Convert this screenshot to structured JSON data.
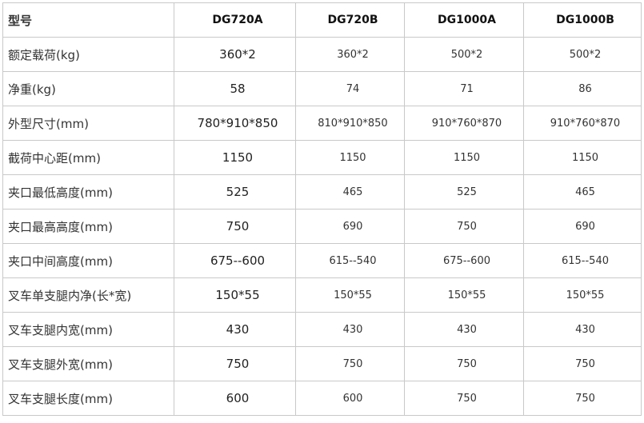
{
  "table": {
    "header": [
      "型号",
      "DG720A",
      "DG720B",
      "DG1000A",
      "DG1000B"
    ],
    "rows": [
      [
        "额定载荷(kg)",
        "360*2",
        "360*2",
        "500*2",
        "500*2"
      ],
      [
        "净重(kg)",
        "58",
        "74",
        "71",
        "86"
      ],
      [
        "外型尺寸(mm)",
        "780*910*850",
        "810*910*850",
        "910*760*870",
        "910*760*870"
      ],
      [
        "截荷中心距(mm)",
        "1150",
        "1150",
        "1150",
        "1150"
      ],
      [
        "夹口最低高度(mm)",
        "525",
        "465",
        "525",
        "465"
      ],
      [
        "夹口最高高度(mm)",
        "750",
        "690",
        "750",
        "690"
      ],
      [
        "夹口中间高度(mm)",
        "675--600",
        "615--540",
        "675--600",
        "615--540"
      ],
      [
        "叉车单支腿内净(长*宽)",
        "150*55",
        "150*55",
        "150*55",
        "150*55"
      ],
      [
        "叉车支腿内宽(mm)",
        "430",
        "430",
        "430",
        "430"
      ],
      [
        "叉车支腿外宽(mm)",
        "750",
        "750",
        "750",
        "750"
      ],
      [
        "叉车支腿长度(mm)",
        "600",
        "600",
        "750",
        "750"
      ]
    ]
  }
}
